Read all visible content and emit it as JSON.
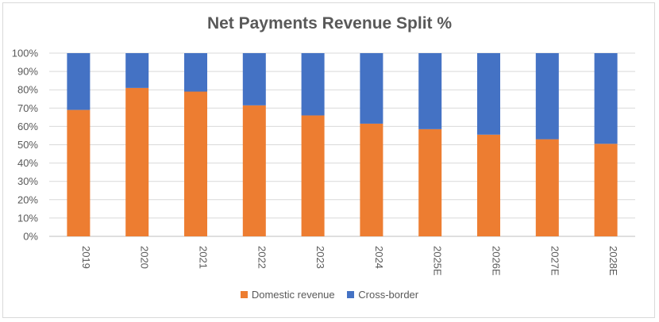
{
  "chart_data": {
    "type": "bar",
    "stacked": true,
    "title": "Net Payments Revenue Split %",
    "categories": [
      "2019",
      "2020",
      "2021",
      "2022",
      "2023",
      "2024",
      "2025E",
      "2026E",
      "2027E",
      "2028E"
    ],
    "series": [
      {
        "name": "Domestic revenue",
        "color": "#ED7D31",
        "values": [
          69,
          81,
          79,
          71.5,
          66,
          61.5,
          58.5,
          55.5,
          53,
          50.5
        ]
      },
      {
        "name": "Cross-border",
        "color": "#4472C4",
        "values": [
          31,
          19,
          21,
          28.5,
          34,
          38.5,
          41.5,
          44.5,
          47,
          49.5
        ]
      }
    ],
    "ylim": [
      0,
      100
    ],
    "yticks": [
      "0%",
      "10%",
      "20%",
      "30%",
      "40%",
      "50%",
      "60%",
      "70%",
      "80%",
      "90%",
      "100%"
    ],
    "grid": true,
    "legend": "bottom"
  }
}
